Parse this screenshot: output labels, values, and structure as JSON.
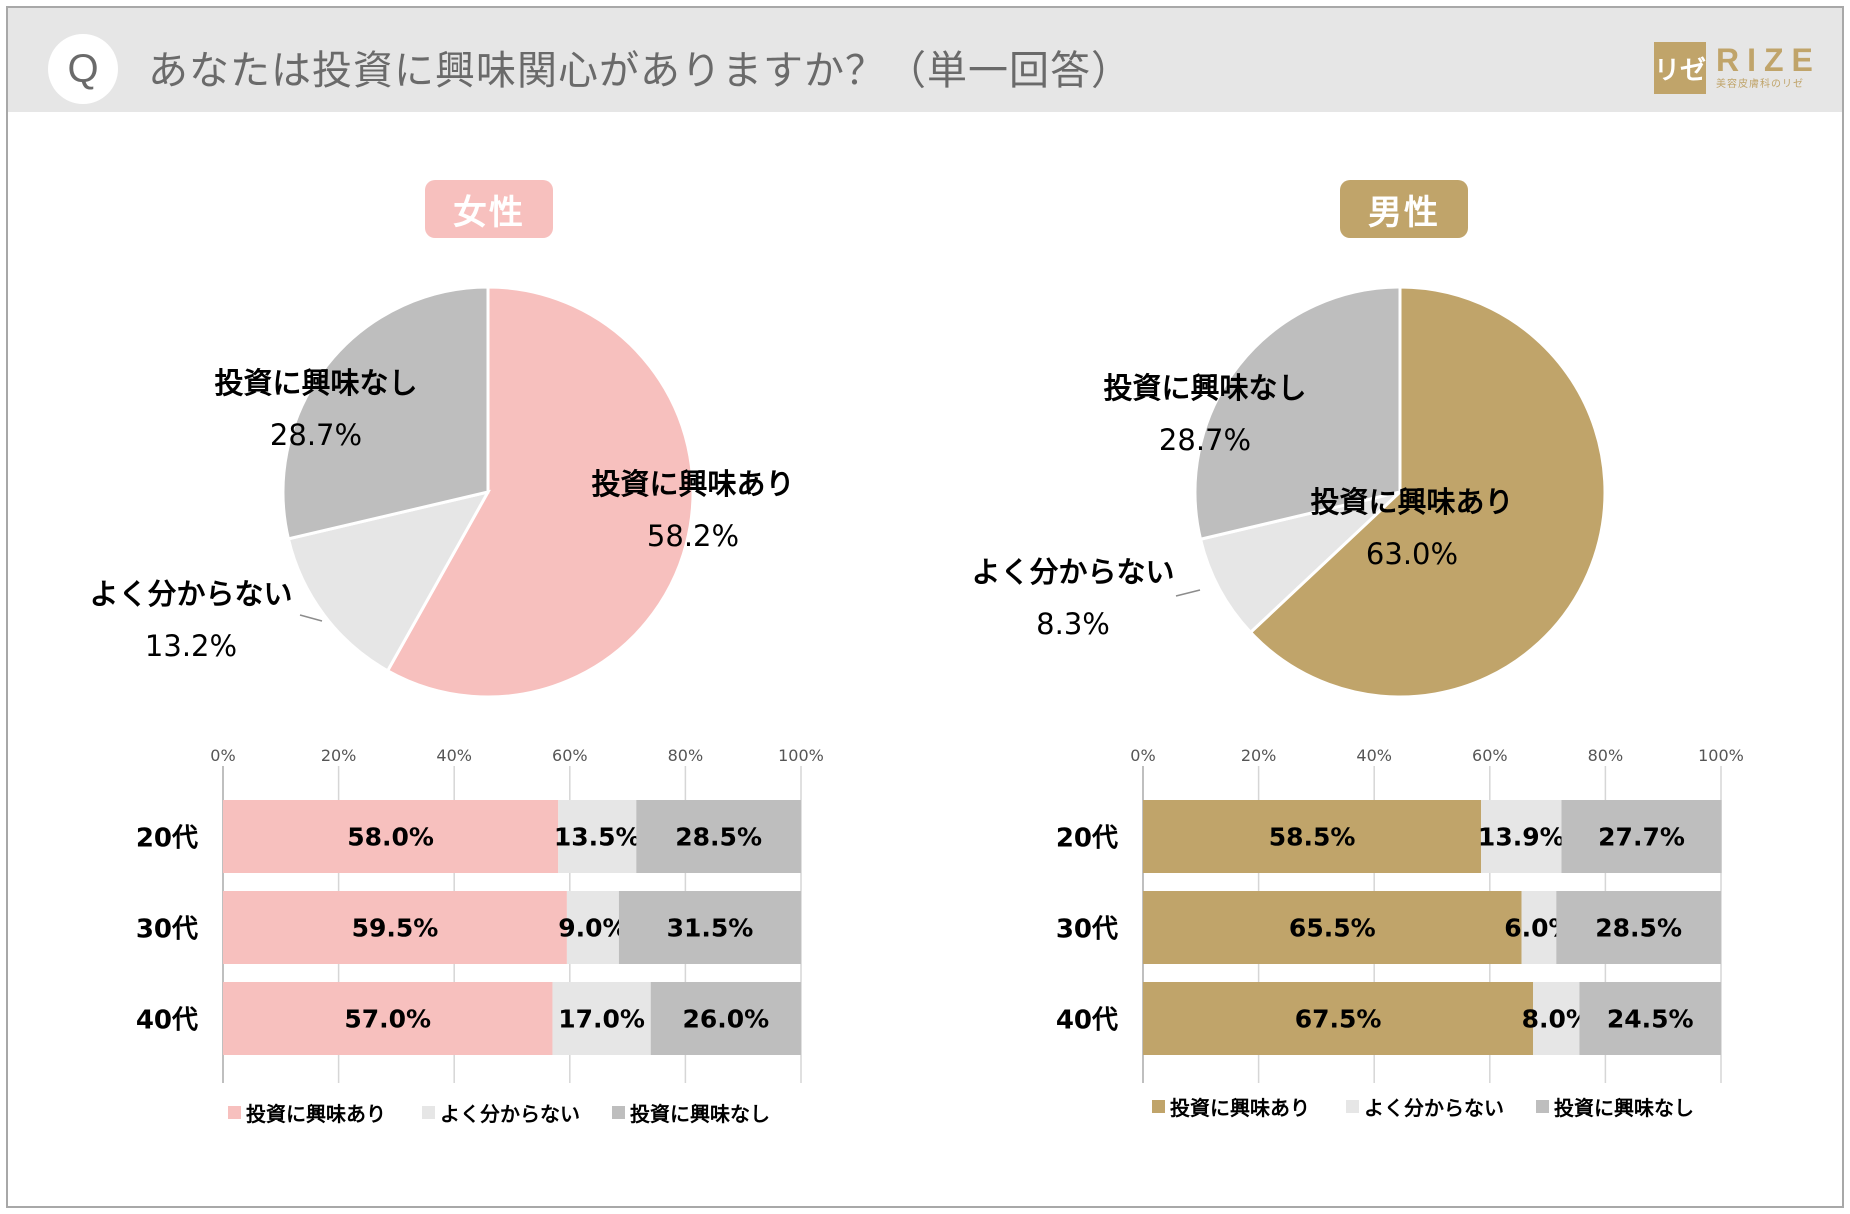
{
  "header": {
    "q_badge": "Q",
    "question": "あなたは投資に興味関心がありますか？（単一回答）",
    "logo_kana": "リゼ",
    "logo_word": "RIZE",
    "logo_sub": "美容皮膚科のリゼ"
  },
  "colors": {
    "female_accent": "#f7c0be",
    "male_accent": "#c0a46a",
    "unsure": "#e6e6e6",
    "not_interested": "#bebebe"
  },
  "chart_data": [
    {
      "type": "pie",
      "group": "female",
      "title": "女性",
      "slices": [
        {
          "label": "投資に興味あり",
          "value": 58.2,
          "display": "58.2%"
        },
        {
          "label": "よく分からない",
          "value": 13.2,
          "display": "13.2%"
        },
        {
          "label": "投資に興味なし",
          "value": 28.7,
          "display": "28.7%"
        }
      ]
    },
    {
      "type": "pie",
      "group": "male",
      "title": "男性",
      "slices": [
        {
          "label": "投資に興味あり",
          "value": 63.0,
          "display": "63.0%"
        },
        {
          "label": "よく分からない",
          "value": 8.3,
          "display": "8.3%"
        },
        {
          "label": "投資に興味なし",
          "value": 28.7,
          "display": "28.7%"
        }
      ]
    },
    {
      "type": "bar",
      "stacked": true,
      "orientation": "horizontal",
      "group": "female",
      "categories": [
        "20代",
        "30代",
        "40代"
      ],
      "ticks": [
        "0%",
        "20%",
        "40%",
        "60%",
        "80%",
        "100%"
      ],
      "xlim": [
        0,
        100
      ],
      "series": [
        {
          "name": "投資に興味あり",
          "values": [
            58.0,
            59.5,
            57.0
          ],
          "labels": [
            "58.0%",
            "59.5%",
            "57.0%"
          ]
        },
        {
          "name": "よく分からない",
          "values": [
            13.5,
            9.0,
            17.0
          ],
          "labels": [
            "13.5%",
            "9.0%",
            "17.0%"
          ]
        },
        {
          "name": "投資に興味なし",
          "values": [
            28.5,
            31.5,
            26.0
          ],
          "labels": [
            "28.5%",
            "31.5%",
            "26.0%"
          ]
        }
      ],
      "legend": [
        "投資に興味あり",
        "よく分からない",
        "投資に興味なし"
      ]
    },
    {
      "type": "bar",
      "stacked": true,
      "orientation": "horizontal",
      "group": "male",
      "categories": [
        "20代",
        "30代",
        "40代"
      ],
      "ticks": [
        "0%",
        "20%",
        "40%",
        "60%",
        "80%",
        "100%"
      ],
      "xlim": [
        0,
        100
      ],
      "series": [
        {
          "name": "投資に興味あり",
          "values": [
            58.5,
            65.5,
            67.5
          ],
          "labels": [
            "58.5%",
            "65.5%",
            "67.5%"
          ]
        },
        {
          "name": "よく分からない",
          "values": [
            13.9,
            6.0,
            8.0
          ],
          "labels": [
            "13.9%",
            "6.0%",
            "8.0%"
          ]
        },
        {
          "name": "投資に興味なし",
          "values": [
            27.7,
            28.5,
            24.5
          ],
          "labels": [
            "27.7%",
            "28.5%",
            "24.5%"
          ]
        }
      ],
      "legend": [
        "投資に興味あり",
        "よく分からない",
        "投資に興味なし"
      ]
    }
  ]
}
